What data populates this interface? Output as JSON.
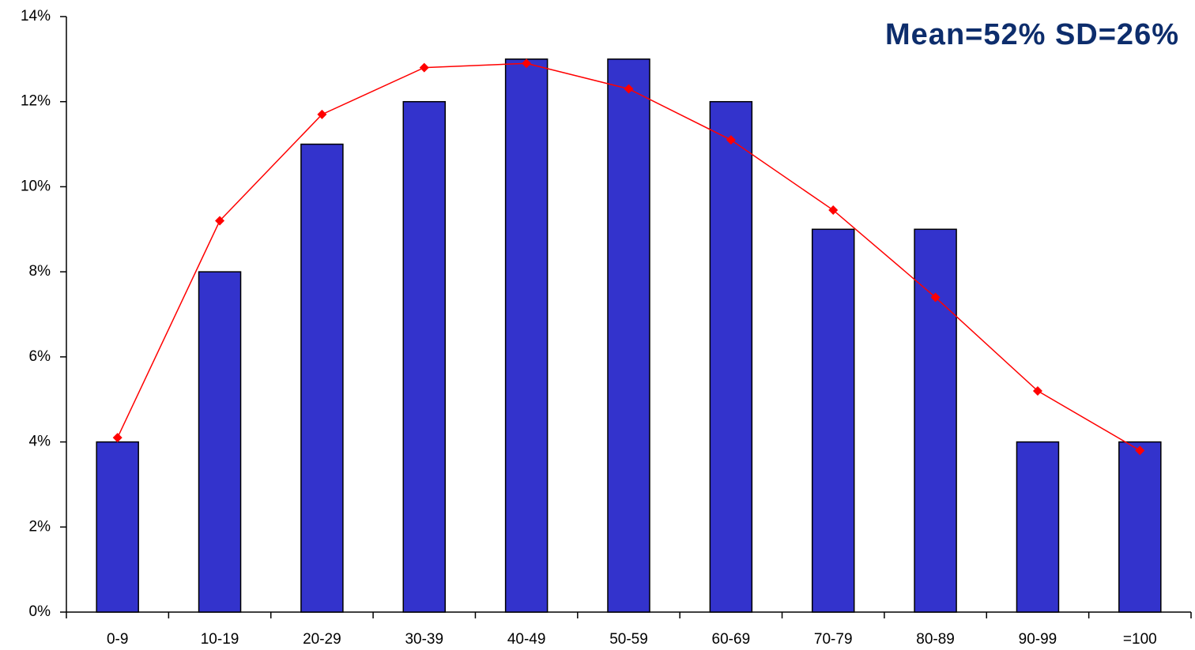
{
  "chart_data": {
    "type": "bar",
    "annotation": "Mean=52%  SD=26%",
    "categories": [
      "0-9",
      "10-19",
      "20-29",
      "30-39",
      "40-49",
      "50-59",
      "60-69",
      "70-79",
      "80-89",
      "90-99",
      "=100"
    ],
    "series": [
      {
        "type": "bar",
        "color": "#3333cc",
        "values": [
          4,
          8,
          11,
          12,
          13,
          13,
          12,
          9,
          9,
          4,
          4
        ]
      },
      {
        "type": "line",
        "color": "#ff0000",
        "values": [
          4.1,
          9.2,
          11.7,
          12.8,
          12.9,
          12.3,
          11.1,
          9.45,
          7.4,
          5.2,
          3.8
        ]
      }
    ],
    "ylim": [
      0,
      14
    ],
    "yticks": [
      {
        "value": 0,
        "label": "0%"
      },
      {
        "value": 2,
        "label": "2%"
      },
      {
        "value": 4,
        "label": "4%"
      },
      {
        "value": 6,
        "label": "6%"
      },
      {
        "value": 8,
        "label": "8%"
      },
      {
        "value": 10,
        "label": "10%"
      },
      {
        "value": 12,
        "label": "12%"
      },
      {
        "value": 14,
        "label": "14%"
      }
    ],
    "grid": false
  }
}
